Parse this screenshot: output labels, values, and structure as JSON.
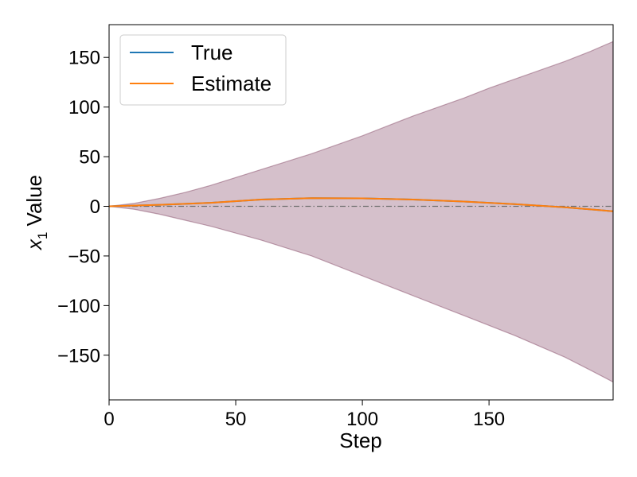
{
  "chart_data": {
    "type": "line",
    "xlabel": "Step",
    "ylabel": "Value",
    "ylabel_math": "x",
    "ylabel_sub": "1",
    "xlim": [
      0,
      199
    ],
    "ylim": [
      -195,
      183
    ],
    "xticks": [
      0,
      50,
      100,
      150
    ],
    "yticks": [
      150,
      100,
      50,
      0,
      -50,
      -100,
      -150
    ],
    "xtick_labels": [
      "0",
      "50",
      "100",
      "150"
    ],
    "ytick_labels": [
      "150",
      "100",
      "50",
      "0",
      "−50",
      "−100",
      "−150"
    ],
    "grid": false,
    "legend_position": "top-left",
    "reference_line_y": 0,
    "series": [
      {
        "name": "True",
        "color": "#1f77b4",
        "x": [
          0,
          20,
          40,
          60,
          80,
          100,
          120,
          140,
          160,
          180,
          199
        ],
        "y": [
          0,
          1.5,
          3.5,
          6.8,
          8.2,
          8.0,
          6.8,
          4.8,
          2.2,
          -1.0,
          -5.0
        ]
      },
      {
        "name": "Estimate",
        "color": "#ff7f0e",
        "x": [
          0,
          20,
          40,
          60,
          80,
          100,
          120,
          140,
          160,
          180,
          199
        ],
        "y": [
          0,
          1.5,
          3.5,
          6.8,
          8.2,
          8.0,
          6.8,
          4.8,
          2.2,
          -1.0,
          -5.0
        ]
      }
    ],
    "band": {
      "color": "#7d3c5c",
      "x": [
        0,
        10,
        20,
        30,
        40,
        50,
        60,
        70,
        80,
        90,
        100,
        110,
        120,
        130,
        140,
        150,
        160,
        170,
        180,
        190,
        199
      ],
      "upper": [
        0,
        3,
        8,
        14,
        21,
        29,
        37,
        45,
        53,
        62,
        71,
        81,
        91,
        100,
        109,
        119,
        128,
        137,
        146,
        156,
        166
      ],
      "lower": [
        0,
        -3,
        -8,
        -14,
        -20,
        -27,
        -34,
        -42,
        -50,
        -60,
        -70,
        -80,
        -90,
        -100,
        -110,
        -120,
        -130,
        -141,
        -152,
        -165,
        -177
      ]
    }
  }
}
